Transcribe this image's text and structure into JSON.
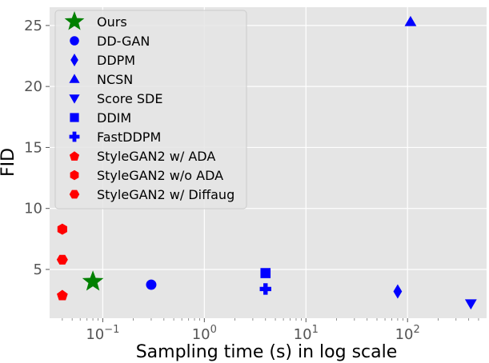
{
  "chart_data": {
    "type": "scatter",
    "title": "",
    "xlabel": "Sampling time (s) in log scale",
    "ylabel": "FID",
    "xscale": "log",
    "xlim": [
      0.03,
      600
    ],
    "ylim": [
      1.0,
      26.5
    ],
    "grid": true,
    "legend_position": "top-left",
    "x_ticks": [
      {
        "value": 0.1,
        "base": "10",
        "exp": "−1"
      },
      {
        "value": 1,
        "base": "10",
        "exp": "0"
      },
      {
        "value": 10,
        "base": "10",
        "exp": "1"
      },
      {
        "value": 100,
        "base": "10",
        "exp": "2"
      }
    ],
    "y_ticks": [
      {
        "value": 5,
        "label": "5"
      },
      {
        "value": 10,
        "label": "10"
      },
      {
        "value": 15,
        "label": "15"
      },
      {
        "value": 20,
        "label": "20"
      },
      {
        "value": 25,
        "label": "25"
      }
    ],
    "series": [
      {
        "name": "Ours",
        "marker": "star",
        "color": "#008000",
        "points": [
          {
            "x": 0.08,
            "y": 4.0
          }
        ]
      },
      {
        "name": "DD-GAN",
        "marker": "circle",
        "color": "#0000ff",
        "points": [
          {
            "x": 0.3,
            "y": 3.75
          }
        ]
      },
      {
        "name": "DDPM",
        "marker": "diamond",
        "color": "#0000ff",
        "points": [
          {
            "x": 80,
            "y": 3.2
          }
        ]
      },
      {
        "name": "NCSN",
        "marker": "triangle-up",
        "color": "#0000ff",
        "points": [
          {
            "x": 107,
            "y": 25.3
          }
        ]
      },
      {
        "name": "Score SDE",
        "marker": "triangle-down",
        "color": "#0000ff",
        "points": [
          {
            "x": 420,
            "y": 2.2
          }
        ]
      },
      {
        "name": "DDIM",
        "marker": "square",
        "color": "#0000ff",
        "points": [
          {
            "x": 4.0,
            "y": 4.7
          }
        ]
      },
      {
        "name": "FastDDPM",
        "marker": "plus",
        "color": "#0000ff",
        "points": [
          {
            "x": 4.0,
            "y": 3.4
          }
        ]
      },
      {
        "name": "StyleGAN2 w/ ADA",
        "marker": "pentagon",
        "color": "#ff0000",
        "points": [
          {
            "x": 0.04,
            "y": 2.9
          }
        ]
      },
      {
        "name": "StyleGAN2 w/o ADA",
        "marker": "hexagon",
        "color": "#ff0000",
        "points": [
          {
            "x": 0.04,
            "y": 8.3
          }
        ]
      },
      {
        "name": "StyleGAN2 w/ Diffaug",
        "marker": "hexagon2",
        "color": "#ff0000",
        "points": [
          {
            "x": 0.04,
            "y": 5.8
          }
        ]
      }
    ]
  }
}
